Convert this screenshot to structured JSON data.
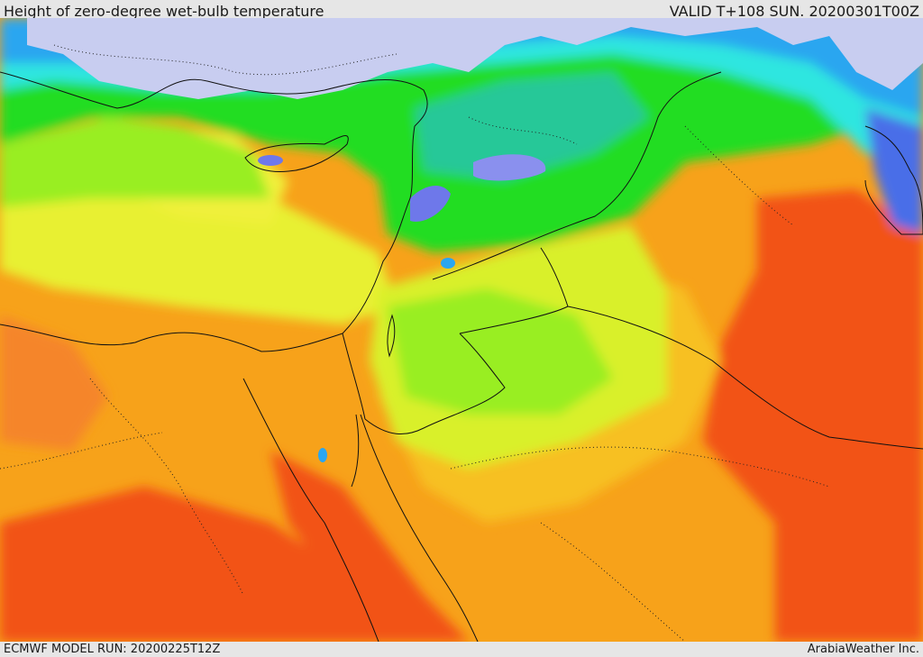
{
  "header": {
    "title": "Height of zero-degree wet-bulb temperature",
    "valid": "VALID T+108 SUN. 20200301T00Z"
  },
  "footer": {
    "model_run": "ECMWF MODEL RUN: 20200225T12Z",
    "credit": "ArabiaWeather Inc."
  },
  "map": {
    "region": "Eastern Mediterranean and Middle East",
    "field": "Height of zero-degree wet-bulb temperature",
    "colors": {
      "very_low": "#c8cdf0",
      "low_blue": "#4a6ee8",
      "blue": "#2aa6f0",
      "cyan": "#2ee6e0",
      "teal": "#28c898",
      "green": "#22dd22",
      "light_green": "#99ee22",
      "yellow_green": "#d9f02a",
      "yellow": "#f0f03a",
      "light_orange": "#f7c020",
      "orange": "#f7a21a",
      "dark_orange": "#f5852a",
      "red_orange": "#f25218",
      "sea": "#c8cdf0"
    }
  }
}
